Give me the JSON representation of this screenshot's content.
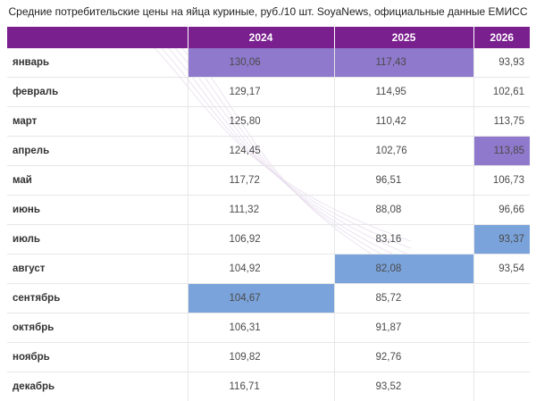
{
  "title": "Средние потребительские цены на яйца куриные, руб./10 шт. SoyaNews, официальные данные ЕМИСС",
  "colors": {
    "header_bg": "#7a1f8e",
    "highlight_max": "#8f79cc",
    "highlight_min": "#7ba3db"
  },
  "table": {
    "headers": [
      "",
      "2024",
      "2025",
      "2026"
    ],
    "rows": [
      {
        "month": "январь",
        "values": [
          "130,06",
          "117,43",
          "93,93"
        ],
        "highlight": [
          "max",
          "max",
          ""
        ]
      },
      {
        "month": "февраль",
        "values": [
          "129,17",
          "114,95",
          "102,61"
        ],
        "highlight": [
          "",
          "",
          ""
        ]
      },
      {
        "month": "март",
        "values": [
          "125,80",
          "110,42",
          "113,75"
        ],
        "highlight": [
          "",
          "",
          ""
        ]
      },
      {
        "month": "апрель",
        "values": [
          "124,45",
          "102,76",
          "113,85"
        ],
        "highlight": [
          "",
          "",
          "max"
        ]
      },
      {
        "month": "май",
        "values": [
          "117,72",
          "96,51",
          "106,73"
        ],
        "highlight": [
          "",
          "",
          ""
        ]
      },
      {
        "month": "июнь",
        "values": [
          "111,32",
          "88,08",
          "96,66"
        ],
        "highlight": [
          "",
          "",
          ""
        ]
      },
      {
        "month": "июль",
        "values": [
          "106,92",
          "83,16",
          "93,37"
        ],
        "highlight": [
          "",
          "",
          "min"
        ]
      },
      {
        "month": "август",
        "values": [
          "104,92",
          "82,08",
          "93,54"
        ],
        "highlight": [
          "",
          "min",
          ""
        ]
      },
      {
        "month": "сентябрь",
        "values": [
          "104,67",
          "85,72",
          ""
        ],
        "highlight": [
          "min",
          "",
          ""
        ]
      },
      {
        "month": "октябрь",
        "values": [
          "106,31",
          "91,87",
          ""
        ],
        "highlight": [
          "",
          "",
          ""
        ]
      },
      {
        "month": "ноябрь",
        "values": [
          "109,82",
          "92,76",
          ""
        ],
        "highlight": [
          "",
          "",
          ""
        ]
      },
      {
        "month": "декабрь",
        "values": [
          "116,71",
          "93,52",
          ""
        ],
        "highlight": [
          "",
          "",
          ""
        ]
      }
    ]
  }
}
